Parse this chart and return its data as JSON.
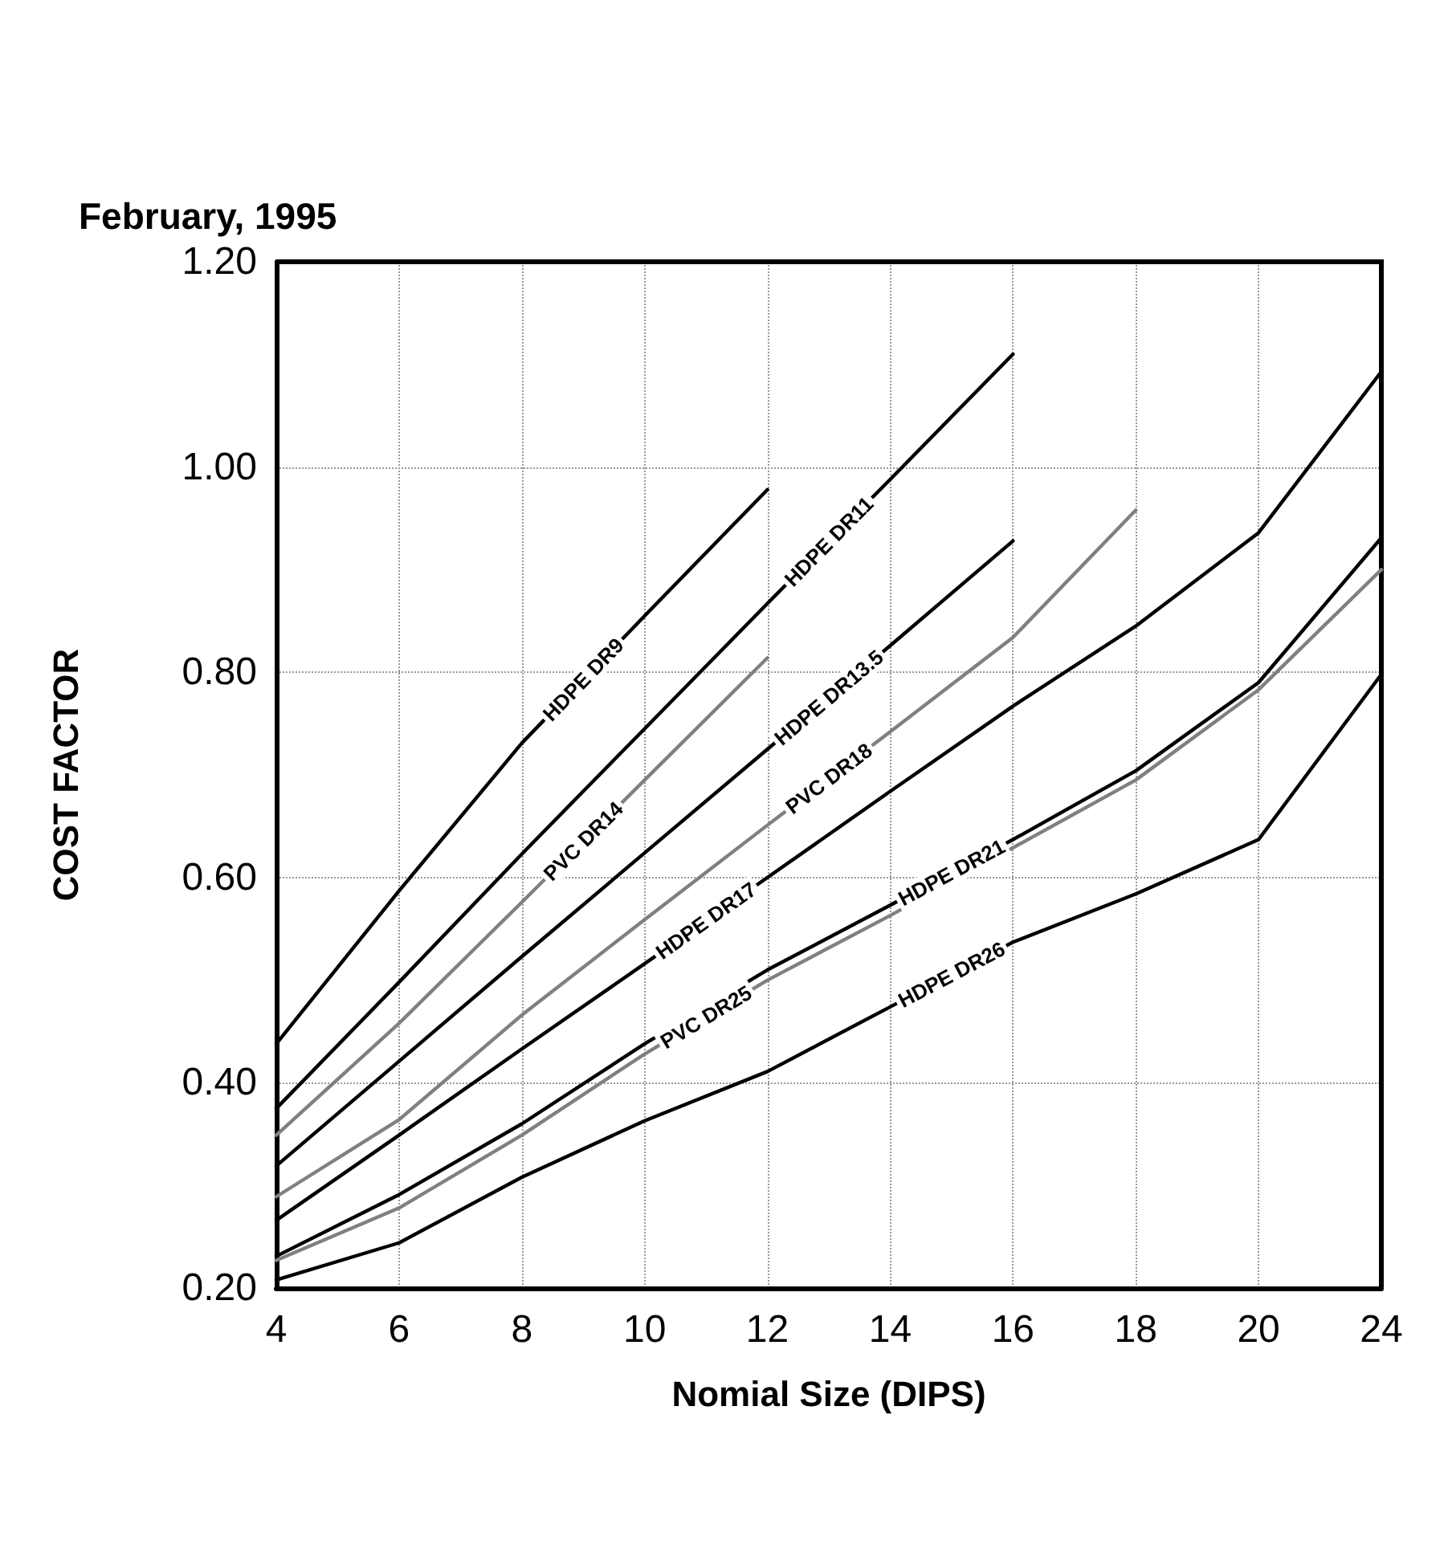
{
  "chart_data": {
    "type": "line",
    "title": "February, 1995",
    "xlabel": "Nomial Size (DIPS)",
    "ylabel": "COST FACTOR",
    "categories": [
      "4",
      "6",
      "8",
      "10",
      "12",
      "14",
      "16",
      "18",
      "20",
      "24"
    ],
    "ylim": [
      0.2,
      1.2
    ],
    "yticks": [
      {
        "value": 0.2,
        "label": "0.20"
      },
      {
        "value": 0.4,
        "label": "0.40"
      },
      {
        "value": 0.6,
        "label": "0.60"
      },
      {
        "value": 0.8,
        "label": "0.80"
      },
      {
        "value": 1.0,
        "label": "1.00"
      },
      {
        "value": 1.2,
        "label": "1.20"
      }
    ],
    "grid": true,
    "legend": false,
    "marker": "none",
    "line_style": "solid",
    "series": [
      {
        "name": "HDPE DR9",
        "color": "#000000",
        "values": [
          0.438,
          0.587,
          0.731,
          0.855,
          0.978,
          null,
          null,
          null,
          null,
          null
        ]
      },
      {
        "name": "HDPE DR11",
        "color": "#000000",
        "values": [
          0.375,
          0.498,
          0.623,
          0.745,
          0.867,
          0.988,
          1.11,
          null,
          null,
          null
        ]
      },
      {
        "name": "PVC DR14",
        "color": "#808080",
        "values": [
          0.349,
          0.458,
          0.576,
          0.695,
          0.814,
          null,
          null,
          null,
          null,
          null
        ]
      },
      {
        "name": "HDPE DR13.5",
        "color": "#000000",
        "values": [
          0.319,
          0.421,
          0.523,
          0.624,
          0.725,
          0.826,
          0.928,
          null,
          null,
          null
        ]
      },
      {
        "name": "PVC DR18",
        "color": "#808080",
        "values": [
          0.289,
          0.364,
          0.466,
          0.559,
          0.651,
          0.742,
          0.834,
          0.958,
          null,
          null
        ]
      },
      {
        "name": "HDPE DR17",
        "color": "#000000",
        "values": [
          0.266,
          0.349,
          0.433,
          0.516,
          0.6,
          0.684,
          0.767,
          0.845,
          0.936,
          1.093
        ]
      },
      {
        "name": "HDPE DR21",
        "color": "#000000",
        "values": [
          0.231,
          0.291,
          0.36,
          0.438,
          0.51,
          0.573,
          0.637,
          0.704,
          0.79,
          0.931
        ]
      },
      {
        "name": "PVC DR25",
        "color": "#808080",
        "values": [
          0.227,
          0.278,
          0.349,
          0.428,
          0.5,
          0.563,
          0.629,
          0.695,
          0.783,
          0.9
        ]
      },
      {
        "name": "HDPE DR26",
        "color": "#000000",
        "values": [
          0.208,
          0.244,
          0.308,
          0.363,
          0.411,
          0.474,
          0.537,
          0.584,
          0.637,
          0.798
        ]
      }
    ]
  }
}
